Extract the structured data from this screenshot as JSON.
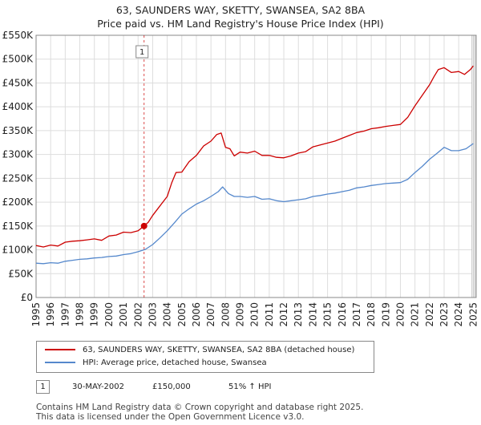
{
  "chart_data": {
    "type": "line",
    "title": "63, SAUNDERS WAY, SKETTY, SWANSEA, SA2 8BA",
    "subtitle": "Price paid vs. HM Land Registry's House Price Index (HPI)",
    "xlabel": "",
    "ylabel": "",
    "xlim": [
      1995,
      2025.2
    ],
    "ylim": [
      0,
      550000
    ],
    "x_ticks": [
      "1995",
      "1996",
      "1997",
      "1998",
      "1999",
      "2000",
      "2001",
      "2002",
      "2003",
      "2004",
      "2005",
      "2006",
      "2007",
      "2008",
      "2009",
      "2010",
      "2011",
      "2012",
      "2013",
      "2014",
      "2015",
      "2016",
      "2017",
      "2018",
      "2019",
      "2020",
      "2021",
      "2022",
      "2023",
      "2024",
      "2025"
    ],
    "y_ticks": [
      "£0",
      "£50K",
      "£100K",
      "£150K",
      "£200K",
      "£250K",
      "£300K",
      "£350K",
      "£400K",
      "£450K",
      "£500K",
      "£550K"
    ],
    "grid": true,
    "series": [
      {
        "name": "63, SAUNDERS WAY, SKETTY, SWANSEA, SA2 8BA (detached house)",
        "color": "#cc0000",
        "x": [
          1995.0,
          1995.5,
          1996.0,
          1996.5,
          1997.0,
          1997.5,
          1998.0,
          1998.5,
          1999.0,
          1999.5,
          2000.0,
          2000.5,
          2001.0,
          2001.5,
          2002.0,
          2002.41,
          2002.7,
          2003.0,
          2003.5,
          2004.0,
          2004.3,
          2004.6,
          2005.0,
          2005.5,
          2006.0,
          2006.5,
          2007.0,
          2007.4,
          2007.7,
          2008.0,
          2008.3,
          2008.6,
          2009.0,
          2009.5,
          2010.0,
          2010.5,
          2011.0,
          2011.5,
          2012.0,
          2012.5,
          2013.0,
          2013.5,
          2014.0,
          2014.5,
          2015.0,
          2015.5,
          2016.0,
          2016.5,
          2017.0,
          2017.5,
          2018.0,
          2018.5,
          2019.0,
          2019.5,
          2020.0,
          2020.5,
          2021.0,
          2021.5,
          2022.0,
          2022.3,
          2022.6,
          2023.0,
          2023.5,
          2024.0,
          2024.4,
          2024.8,
          2025.0
        ],
        "values": [
          109000,
          106000,
          110000,
          108000,
          116000,
          118000,
          119000,
          121000,
          123000,
          120000,
          129000,
          131000,
          137000,
          136000,
          140000,
          150000,
          158000,
          172000,
          192000,
          212000,
          240000,
          262000,
          263000,
          285000,
          298000,
          318000,
          328000,
          342000,
          345000,
          315000,
          312000,
          297000,
          305000,
          303000,
          307000,
          298000,
          298000,
          294000,
          293000,
          297000,
          303000,
          306000,
          316000,
          320000,
          324000,
          328000,
          334000,
          340000,
          346000,
          349000,
          354000,
          356000,
          359000,
          361000,
          363000,
          378000,
          402000,
          424000,
          446000,
          463000,
          478000,
          482000,
          472000,
          474000,
          468000,
          478000,
          486000
        ]
      },
      {
        "name": "HPI: Average price, detached house, Swansea",
        "color": "#5588cc",
        "x": [
          1995.0,
          1995.5,
          1996.0,
          1996.5,
          1997.0,
          1997.5,
          1998.0,
          1998.5,
          1999.0,
          1999.5,
          2000.0,
          2000.5,
          2001.0,
          2001.5,
          2002.0,
          2002.5,
          2003.0,
          2003.5,
          2004.0,
          2004.5,
          2005.0,
          2005.5,
          2006.0,
          2006.5,
          2007.0,
          2007.5,
          2007.8,
          2008.2,
          2008.6,
          2009.0,
          2009.5,
          2010.0,
          2010.5,
          2011.0,
          2011.5,
          2012.0,
          2012.5,
          2013.0,
          2013.5,
          2014.0,
          2014.5,
          2015.0,
          2015.5,
          2016.0,
          2016.5,
          2017.0,
          2017.5,
          2018.0,
          2018.5,
          2019.0,
          2019.5,
          2020.0,
          2020.5,
          2021.0,
          2021.5,
          2022.0,
          2022.5,
          2023.0,
          2023.5,
          2024.0,
          2024.5,
          2025.0
        ],
        "values": [
          72000,
          71000,
          73000,
          72000,
          76000,
          78000,
          80000,
          81000,
          83000,
          84000,
          86000,
          87000,
          90000,
          92000,
          96000,
          101000,
          111000,
          125000,
          140000,
          157000,
          175000,
          186000,
          196000,
          203000,
          212000,
          222000,
          232000,
          218000,
          212000,
          212000,
          210000,
          212000,
          206000,
          207000,
          203000,
          201000,
          203000,
          205000,
          207000,
          212000,
          214000,
          217000,
          219000,
          222000,
          225000,
          230000,
          232000,
          235000,
          237000,
          239000,
          240000,
          241000,
          248000,
          262000,
          275000,
          290000,
          302000,
          315000,
          308000,
          308000,
          312000,
          323000
        ]
      }
    ],
    "annotations": [
      {
        "label": "1",
        "x": 2002.41,
        "value": 150000
      }
    ]
  },
  "legend": {
    "series_1": "63, SAUNDERS WAY, SKETTY, SWANSEA, SA2 8BA (detached house)",
    "series_2": "HPI: Average price, detached house, Swansea"
  },
  "sales": [
    {
      "num": "1",
      "date": "30-MAY-2002",
      "price": "£150,000",
      "hpi": "51% ↑ HPI"
    }
  ],
  "footer": {
    "line1": "Contains HM Land Registry data © Crown copyright and database right 2025.",
    "line2": "This data is licensed under the Open Government Licence v3.0."
  },
  "colors": {
    "red": "#cc0000",
    "blue": "#5588cc",
    "grid": "#dddddd"
  }
}
